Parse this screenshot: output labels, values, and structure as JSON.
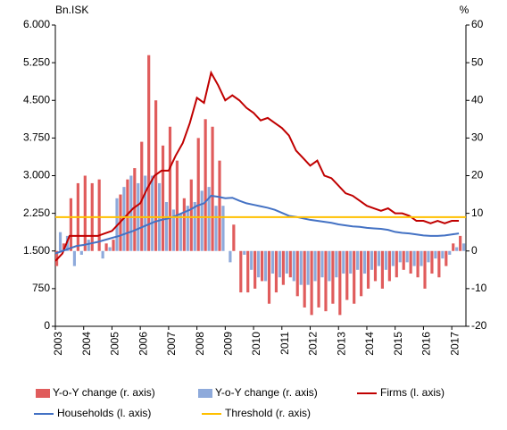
{
  "chart_data": {
    "type": "bar",
    "y_unit_left": "Bn.ISK",
    "y_unit_right": "%",
    "xlim": [
      2003,
      2017.5
    ],
    "xticks": [
      2003,
      2004,
      2005,
      2006,
      2007,
      2008,
      2009,
      2010,
      2011,
      2012,
      2013,
      2014,
      2015,
      2016,
      2017
    ],
    "ylim": [
      0,
      6000
    ],
    "yticks": [
      0,
      750,
      {
        "value": 1500,
        "label": "1.500"
      },
      {
        "value": 2250,
        "label": "2.250"
      },
      {
        "value": 3000,
        "label": "3.000"
      },
      {
        "value": 3750,
        "label": "3.750"
      },
      {
        "value": 4500,
        "label": "4.500"
      },
      {
        "value": 5250,
        "label": "5.250"
      },
      {
        "value": 6000,
        "label": "6.000"
      }
    ],
    "y2lim": [
      -20,
      60
    ],
    "y2ticks": [
      -20,
      -10,
      0,
      10,
      20,
      30,
      40,
      50,
      60
    ],
    "x": [
      2003,
      2003.25,
      2003.5,
      2003.75,
      2004,
      2004.25,
      2004.5,
      2004.75,
      2005,
      2005.25,
      2005.5,
      2005.75,
      2006,
      2006.25,
      2006.5,
      2006.75,
      2007,
      2007.25,
      2007.5,
      2007.75,
      2008,
      2008.25,
      2008.5,
      2008.75,
      2009,
      2009.25,
      2009.5,
      2009.75,
      2010,
      2010.25,
      2010.5,
      2010.75,
      2011,
      2011.25,
      2011.5,
      2011.75,
      2012,
      2012.25,
      2012.5,
      2012.75,
      2013,
      2013.25,
      2013.5,
      2013.75,
      2014,
      2014.25,
      2014.5,
      2014.75,
      2015,
      2015.25,
      2015.5,
      2015.75,
      2016,
      2016.25,
      2016.5,
      2016.75,
      2017,
      2017.25
    ],
    "series": [
      {
        "name": "Y-o-Y change (r. axis)",
        "type": "bar",
        "axis": "y2",
        "color": "#e05c5c",
        "values": [
          -4,
          2,
          14,
          18,
          20,
          18,
          19,
          2,
          3,
          15,
          19,
          22,
          29,
          52,
          40,
          28,
          33,
          24,
          14,
          19,
          30,
          35,
          33,
          24,
          0,
          7,
          -11,
          -11,
          -10,
          -8,
          -14,
          -11,
          -9,
          -7,
          -12,
          -15,
          -17,
          -15,
          -16,
          -14,
          -17,
          -13,
          -14,
          -12,
          -10,
          -8,
          -10,
          -8,
          -7,
          -5,
          -6,
          -7,
          -10,
          -6,
          -7,
          -4,
          2,
          4
        ]
      },
      {
        "name": "Y-o-Y change (r. axis)",
        "type": "bar",
        "axis": "y2",
        "color": "#8eaadb",
        "values": [
          5,
          4,
          -4,
          -1,
          3,
          0,
          -2,
          1,
          14,
          17,
          20,
          18,
          20,
          20,
          18,
          13,
          11,
          10,
          12,
          13,
          16,
          17,
          12,
          12,
          -3,
          0,
          -1,
          -5,
          -7,
          -8,
          -6,
          -7,
          -6,
          -8,
          -9,
          -9,
          -8,
          -7,
          -8,
          -7,
          -6,
          -6,
          -5,
          -6,
          -5,
          -4,
          -5,
          -4,
          -3,
          -3,
          -4,
          -4,
          -3,
          -2,
          -2,
          -1,
          1,
          2
        ]
      },
      {
        "name": "Firms (l. axis)",
        "type": "line",
        "axis": "y",
        "color": "#c00000",
        "values": [
          1300,
          1450,
          1800,
          1800,
          1800,
          1800,
          1800,
          1850,
          1900,
          2050,
          2200,
          2350,
          2450,
          2750,
          3000,
          3100,
          3100,
          3400,
          3650,
          4050,
          4550,
          4450,
          5050,
          4800,
          4500,
          4600,
          4500,
          4350,
          4250,
          4100,
          4150,
          4050,
          3950,
          3800,
          3500,
          3350,
          3200,
          3300,
          3000,
          2950,
          2800,
          2650,
          2600,
          2500,
          2400,
          2350,
          2300,
          2350,
          2250,
          2250,
          2200,
          2100,
          2100,
          2050,
          2100,
          2050,
          2100,
          2100
        ]
      },
      {
        "name": "Households (l. axis)",
        "type": "line",
        "axis": "y",
        "color": "#4472c4",
        "values": [
          1450,
          1500,
          1550,
          1600,
          1620,
          1650,
          1680,
          1720,
          1760,
          1800,
          1850,
          1900,
          1960,
          2020,
          2080,
          2120,
          2150,
          2200,
          2260,
          2320,
          2400,
          2450,
          2600,
          2580,
          2550,
          2560,
          2500,
          2450,
          2420,
          2390,
          2360,
          2320,
          2260,
          2200,
          2180,
          2150,
          2120,
          2100,
          2080,
          2060,
          2030,
          2010,
          1990,
          1980,
          1960,
          1950,
          1940,
          1920,
          1880,
          1860,
          1850,
          1830,
          1810,
          1800,
          1800,
          1810,
          1830,
          1850
        ]
      },
      {
        "name": "Threshold (r. axis)",
        "type": "line",
        "axis": "y2",
        "color": "#ffc000",
        "x": [
          2003,
          2017.5
        ],
        "values": [
          9,
          9
        ]
      }
    ]
  }
}
